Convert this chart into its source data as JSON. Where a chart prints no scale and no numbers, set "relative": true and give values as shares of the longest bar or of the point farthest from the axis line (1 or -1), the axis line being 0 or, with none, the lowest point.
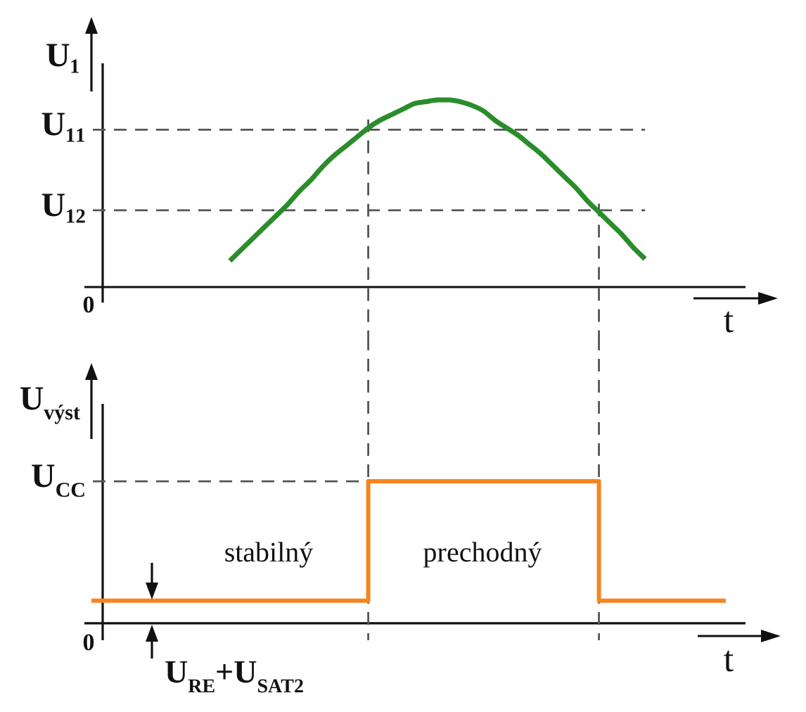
{
  "chart_data": [
    {
      "type": "line",
      "ylabel": "U₁",
      "xlabel": "t",
      "relative": true,
      "categories": [
        null,
        null,
        null,
        null,
        null,
        null,
        null,
        null,
        null,
        null,
        null,
        null,
        null,
        null,
        null,
        null,
        null,
        null,
        null,
        null,
        null,
        null,
        null,
        null,
        null,
        null,
        null,
        null,
        null,
        null,
        null,
        null,
        null,
        null,
        null,
        null,
        null,
        null,
        null,
        null,
        null,
        null,
        null,
        null,
        null,
        null,
        null,
        null,
        null,
        null,
        null,
        null,
        null,
        null,
        null,
        null
      ],
      "series": [
        {
          "color": "#2a8c2a",
          "values": [
            null,
            null,
            null,
            null,
            null,
            null,
            null,
            null,
            null,
            null,
            null,
            null,
            0.14,
            0.2,
            0.26,
            0.32,
            0.38,
            0.44,
            0.51,
            0.57,
            0.64,
            0.7,
            0.75,
            0.8,
            0.85,
            0.89,
            0.92,
            0.95,
            0.98,
            0.99,
            1,
            1,
            0.99,
            0.97,
            0.94,
            0.89,
            0.85,
            0.81,
            0.76,
            0.71,
            0.65,
            0.59,
            0.53,
            0.46,
            0.4,
            0.34,
            0.28,
            0.21,
            0.15,
            null,
            null,
            null,
            null,
            null,
            null,
            null
          ]
        }
      ],
      "ref_lines": [
        {
          "axis": "y",
          "value": 0.84,
          "label": "U₁₁",
          "color": "#555555",
          "line_style": "dashed"
        },
        {
          "axis": "y",
          "value": 0.41,
          "label": "U₁₂",
          "color": "#555555",
          "line_style": "dashed"
        }
      ],
      "annotations": [
        "0"
      ]
    },
    {
      "type": "step",
      "ylabel": "U$_{výst}$",
      "xlabel": "t",
      "relative": true,
      "categories": [
        null,
        null,
        null,
        null,
        null,
        null,
        null,
        null,
        null,
        null,
        null,
        null,
        null,
        null,
        null,
        null,
        null,
        null,
        null,
        null,
        null,
        null,
        null,
        null,
        null,
        null,
        null,
        null,
        null,
        null,
        null,
        null,
        null,
        null,
        null,
        null,
        null,
        null,
        null,
        null,
        null,
        null,
        null,
        null,
        null,
        null,
        null,
        null,
        null,
        null,
        null,
        null,
        null,
        null,
        null,
        null
      ],
      "series": [
        {
          "color": "#f7851f",
          "values": [
            0.16,
            0.16,
            0.16,
            0.16,
            0.16,
            0.16,
            0.16,
            0.16,
            0.16,
            0.16,
            0.16,
            0.16,
            0.16,
            0.16,
            0.16,
            0.16,
            0.16,
            0.16,
            0.16,
            0.16,
            0.16,
            0.16,
            0.16,
            0.16,
            1,
            1,
            1,
            1,
            1,
            1,
            1,
            1,
            1,
            1,
            1,
            1,
            1,
            1,
            1,
            1,
            1,
            1,
            1,
            1,
            0.16,
            0.16,
            0.16,
            0.16,
            0.16,
            0.16,
            0.16,
            0.16,
            0.16,
            0.16,
            0.16,
            0.16
          ]
        }
      ],
      "ref_lines": [
        {
          "axis": "y",
          "value": 1,
          "label": "U$_{CC}$",
          "color": "#555555",
          "line_style": "dashed"
        }
      ],
      "annotations": [
        "0",
        "stabilný",
        "prechodný",
        "U$_{RE}$+U$_{SAT2}$"
      ]
    }
  ]
}
